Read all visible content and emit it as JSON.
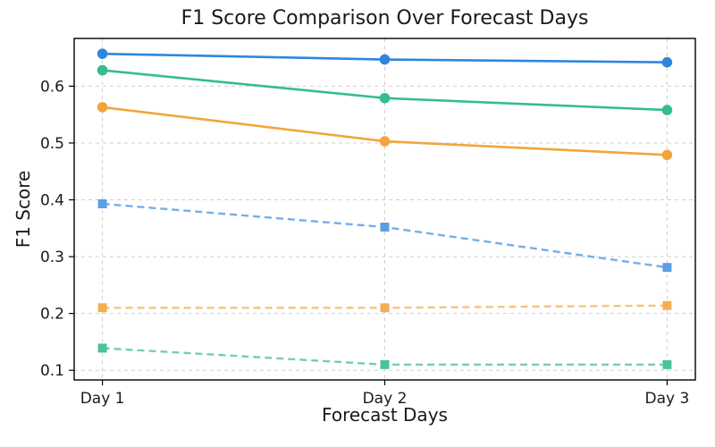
{
  "chart_data": {
    "type": "line",
    "title": "F1 Score Comparison Over Forecast Days",
    "xlabel": "Forecast Days",
    "ylabel": "F1 Score",
    "categories": [
      "Day 1",
      "Day 2",
      "Day 3"
    ],
    "yticks": [
      0.1,
      0.2,
      0.3,
      0.4,
      0.5,
      0.6
    ],
    "ylim": [
      0.083,
      0.684
    ],
    "xlim_padding": 0.1,
    "grid": true,
    "grid_color": "#cfcfcf",
    "legend": false,
    "series": [
      {
        "name": "solid-blue-circles",
        "color": "#2E86DE",
        "marker_color": "#2E86DE",
        "line_style": "solid",
        "marker": "circle",
        "values": [
          0.657,
          0.647,
          0.642
        ]
      },
      {
        "name": "solid-green-circles",
        "color": "#35BD8D",
        "marker_color": "#35BD8D",
        "line_style": "solid",
        "marker": "circle",
        "values": [
          0.628,
          0.579,
          0.558
        ]
      },
      {
        "name": "solid-orange-circles",
        "color": "#F2A53C",
        "marker_color": "#F2A53C",
        "line_style": "solid",
        "marker": "circle",
        "values": [
          0.563,
          0.503,
          0.479
        ]
      },
      {
        "name": "dashed-lightblue-squares",
        "color": "#74AEEA",
        "marker_color": "#5B9FE6",
        "line_style": "dashed",
        "marker": "square",
        "values": [
          0.393,
          0.352,
          0.281
        ]
      },
      {
        "name": "dashed-lightorange-squares",
        "color": "#F8C377",
        "marker_color": "#F3AE55",
        "line_style": "dashed",
        "marker": "square",
        "values": [
          0.21,
          0.21,
          0.214
        ]
      },
      {
        "name": "dashed-lightgreen-squares",
        "color": "#72D1A9",
        "marker_color": "#4AC397",
        "line_style": "dashed",
        "marker": "square",
        "values": [
          0.139,
          0.11,
          0.11
        ]
      }
    ]
  }
}
